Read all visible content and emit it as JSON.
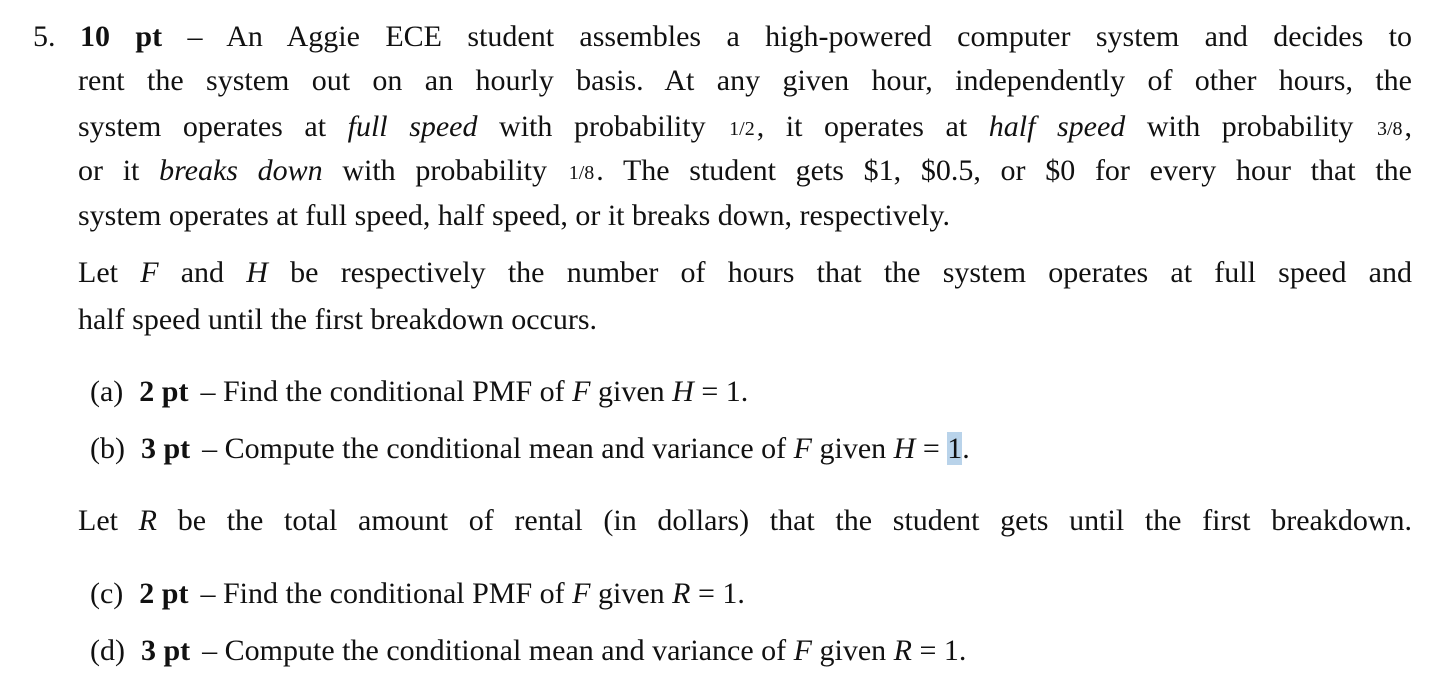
{
  "problem": {
    "number": "5.",
    "lines": [
      [
        {
          "t": "10 pt",
          "s": "b"
        },
        {
          "t": " – An Aggie ECE student assembles a high-powered computer system and decides to",
          "s": "n"
        }
      ],
      [
        {
          "t": "rent the system out on an hourly basis. At any given hour, independently of other hours, the",
          "s": "n"
        }
      ],
      [
        {
          "t": "system operates at ",
          "s": "n"
        },
        {
          "t": "full speed",
          "s": "i"
        },
        {
          "t": " with probability ",
          "s": "n"
        },
        {
          "t": "1/2",
          "s": "frac"
        },
        {
          "t": ", it operates at ",
          "s": "n"
        },
        {
          "t": "half speed",
          "s": "i"
        },
        {
          "t": " with probability ",
          "s": "n"
        },
        {
          "t": "3/8",
          "s": "frac"
        },
        {
          "t": ",",
          "s": "n"
        }
      ],
      [
        {
          "t": "or it ",
          "s": "n"
        },
        {
          "t": "breaks down",
          "s": "i"
        },
        {
          "t": " with probability ",
          "s": "n"
        },
        {
          "t": "1/8",
          "s": "frac"
        },
        {
          "t": ". The student gets $1, $0.5, or $0 for every hour that the",
          "s": "n"
        }
      ],
      [
        {
          "t": "system operates at full speed, half speed, or it breaks down, respectively.",
          "s": "n"
        }
      ],
      [
        {
          "t": "Let ",
          "s": "n"
        },
        {
          "t": "F",
          "s": "i"
        },
        {
          "t": " and ",
          "s": "n"
        },
        {
          "t": "H",
          "s": "i"
        },
        {
          "t": " be respectively the number of hours that the system operates at full speed and",
          "s": "n"
        }
      ],
      [
        {
          "t": "half speed until the first breakdown occurs.",
          "s": "n"
        }
      ],
      [
        {
          "t": "Let ",
          "s": "n"
        },
        {
          "t": "R",
          "s": "i"
        },
        {
          "t": " be the total amount of rental (in dollars) that the student gets until the first breakdown.",
          "s": "n"
        }
      ]
    ],
    "parts": [
      {
        "label": "(a)",
        "points": "2 pt",
        "text": [
          {
            "t": "– Find the conditional PMF of ",
            "s": "n"
          },
          {
            "t": "F",
            "s": "i"
          },
          {
            "t": " given ",
            "s": "n"
          },
          {
            "t": "H",
            "s": "i"
          },
          {
            "t": " = 1.",
            "s": "n"
          }
        ]
      },
      {
        "label": "(b)",
        "points": "3 pt",
        "text": [
          {
            "t": "– Compute the conditional mean and variance of ",
            "s": "n"
          },
          {
            "t": "F",
            "s": "i"
          },
          {
            "t": " given ",
            "s": "n"
          },
          {
            "t": "H",
            "s": "i"
          },
          {
            "t": " = ",
            "s": "n"
          },
          {
            "t": "1",
            "s": "hl"
          },
          {
            "t": ".",
            "s": "n"
          }
        ]
      },
      {
        "label": "(c)",
        "points": "2 pt",
        "text": [
          {
            "t": "– Find the conditional PMF of ",
            "s": "n"
          },
          {
            "t": "F",
            "s": "i"
          },
          {
            "t": " given ",
            "s": "n"
          },
          {
            "t": "R",
            "s": "i"
          },
          {
            "t": " = 1.",
            "s": "n"
          }
        ]
      },
      {
        "label": "(d)",
        "points": "3 pt",
        "text": [
          {
            "t": "– Compute the conditional mean and variance of ",
            "s": "n"
          },
          {
            "t": "F",
            "s": "i"
          },
          {
            "t": " given ",
            "s": "n"
          },
          {
            "t": "R",
            "s": "i"
          },
          {
            "t": " = 1.",
            "s": "n"
          }
        ]
      }
    ]
  },
  "colors": {
    "selection_highlight": "#b9d3ea"
  }
}
